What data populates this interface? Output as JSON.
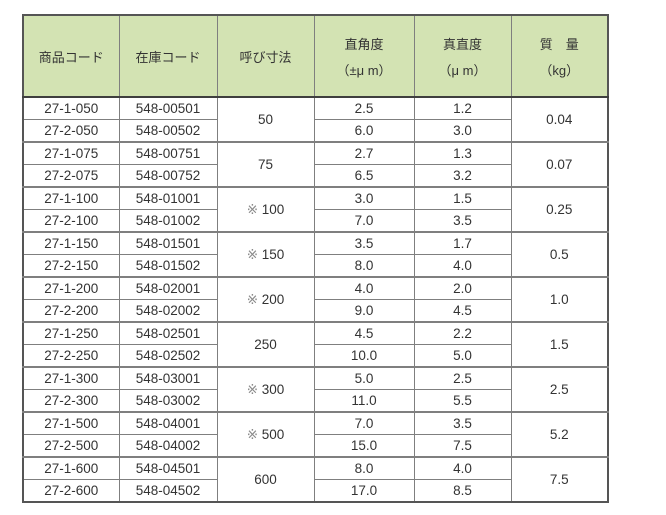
{
  "colors": {
    "header_background": "#d3e3b3",
    "outer_border": "#555555",
    "grid_border": "#7f7f7f",
    "inner_row_border": "#4a4a4a",
    "text": "#333333",
    "reference_mark": "#8a8a8a",
    "page_background": "#ffffff"
  },
  "table": {
    "headers": {
      "product": "商品コード",
      "stock": "在庫コード",
      "size": "呼び寸法",
      "squareness_1": "直角度",
      "squareness_2": "（±μ m）",
      "straightness_1": "真直度",
      "straightness_2": "（μ m）",
      "mass_1": "質　量",
      "mass_2": "（kg）"
    },
    "groups": [
      {
        "size_prefix": "",
        "size": "50",
        "mass": "0.04",
        "rows": [
          {
            "product": "27-1-050",
            "stock": "548-00501",
            "sq": "2.5",
            "st": "1.2"
          },
          {
            "product": "27-2-050",
            "stock": "548-00502",
            "sq": "6.0",
            "st": "3.0"
          }
        ]
      },
      {
        "size_prefix": "",
        "size": "75",
        "mass": "0.07",
        "rows": [
          {
            "product": "27-1-075",
            "stock": "548-00751",
            "sq": "2.7",
            "st": "1.3"
          },
          {
            "product": "27-2-075",
            "stock": "548-00752",
            "sq": "6.5",
            "st": "3.2"
          }
        ]
      },
      {
        "size_prefix": "※ ",
        "size": "100",
        "mass": "0.25",
        "rows": [
          {
            "product": "27-1-100",
            "stock": "548-01001",
            "sq": "3.0",
            "st": "1.5"
          },
          {
            "product": "27-2-100",
            "stock": "548-01002",
            "sq": "7.0",
            "st": "3.5"
          }
        ]
      },
      {
        "size_prefix": "※ ",
        "size": "150",
        "mass": "0.5",
        "rows": [
          {
            "product": "27-1-150",
            "stock": "548-01501",
            "sq": "3.5",
            "st": "1.7"
          },
          {
            "product": "27-2-150",
            "stock": "548-01502",
            "sq": "8.0",
            "st": "4.0"
          }
        ]
      },
      {
        "size_prefix": "※ ",
        "size": "200",
        "mass": "1.0",
        "rows": [
          {
            "product": "27-1-200",
            "stock": "548-02001",
            "sq": "4.0",
            "st": "2.0"
          },
          {
            "product": "27-2-200",
            "stock": "548-02002",
            "sq": "9.0",
            "st": "4.5"
          }
        ]
      },
      {
        "size_prefix": "",
        "size": "250",
        "mass": "1.5",
        "rows": [
          {
            "product": "27-1-250",
            "stock": "548-02501",
            "sq": "4.5",
            "st": "2.2"
          },
          {
            "product": "27-2-250",
            "stock": "548-02502",
            "sq": "10.0",
            "st": "5.0"
          }
        ]
      },
      {
        "size_prefix": "※ ",
        "size": "300",
        "mass": "2.5",
        "rows": [
          {
            "product": "27-1-300",
            "stock": "548-03001",
            "sq": "5.0",
            "st": "2.5"
          },
          {
            "product": "27-2-300",
            "stock": "548-03002",
            "sq": "11.0",
            "st": "5.5"
          }
        ]
      },
      {
        "size_prefix": "※ ",
        "size": "500",
        "mass": "5.2",
        "rows": [
          {
            "product": "27-1-500",
            "stock": "548-04001",
            "sq": "7.0",
            "st": "3.5"
          },
          {
            "product": "27-2-500",
            "stock": "548-04002",
            "sq": "15.0",
            "st": "7.5"
          }
        ]
      },
      {
        "size_prefix": "",
        "size": "600",
        "mass": "7.5",
        "rows": [
          {
            "product": "27-1-600",
            "stock": "548-04501",
            "sq": "8.0",
            "st": "4.0"
          },
          {
            "product": "27-2-600",
            "stock": "548-04502",
            "sq": "17.0",
            "st": "8.5"
          }
        ]
      }
    ]
  }
}
